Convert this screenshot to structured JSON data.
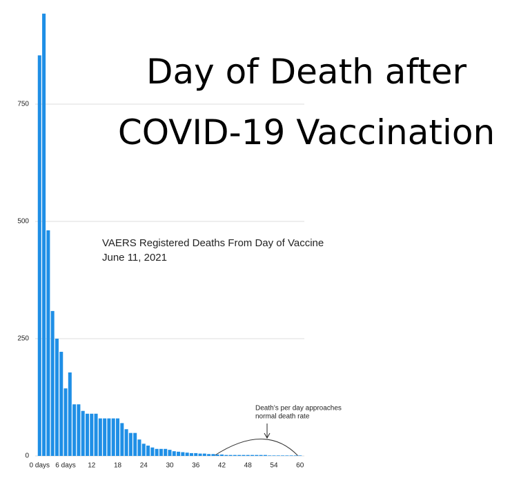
{
  "chart_data": {
    "type": "bar",
    "title": "Day of Death after COVID-19 Vaccination",
    "subtitle": "VAERS Registered Deaths From Day of Vaccine",
    "date": "June 11, 2021",
    "annotation": [
      "Death’s per day approaches",
      "normal death rate"
    ],
    "x": [
      0,
      1,
      2,
      3,
      4,
      5,
      6,
      7,
      8,
      9,
      10,
      11,
      12,
      13,
      14,
      15,
      16,
      17,
      18,
      19,
      20,
      21,
      22,
      23,
      24,
      25,
      26,
      27,
      28,
      29,
      30,
      31,
      32,
      33,
      34,
      35,
      36,
      37,
      38,
      39,
      40,
      41,
      42,
      43,
      44,
      45,
      46,
      47,
      48,
      49,
      50,
      51,
      52,
      53,
      54,
      55,
      56,
      57,
      58,
      59,
      60
    ],
    "values": [
      854,
      943,
      481,
      309,
      250,
      222,
      144,
      178,
      110,
      110,
      96,
      90,
      90,
      90,
      80,
      80,
      80,
      80,
      80,
      70,
      57,
      49,
      49,
      35,
      26,
      22,
      18,
      15,
      15,
      15,
      13,
      10,
      9,
      8,
      7,
      6,
      6,
      5,
      5,
      4,
      4,
      3,
      3,
      2,
      2,
      2,
      2,
      2,
      2,
      2,
      2,
      2,
      2,
      1,
      1,
      1,
      1,
      1,
      1,
      1,
      1
    ],
    "color": "#1f8fe6",
    "xlim": [
      -1,
      61
    ],
    "xticks": [
      {
        "value": 0,
        "label": "0 days"
      },
      {
        "value": 6,
        "label": "6 days"
      },
      12,
      18,
      24,
      30,
      36,
      42,
      48,
      54,
      60
    ],
    "ylim": [
      0,
      950
    ],
    "yticks": [
      0,
      250,
      500,
      750
    ],
    "grid": true
  }
}
